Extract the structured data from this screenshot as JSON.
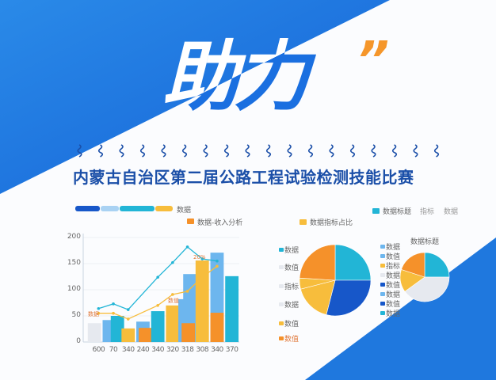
{
  "colors": {
    "primary_blue": "#1a6fe0",
    "dark_blue": "#1757c9",
    "light_blue": "#6db6ee",
    "cyan": "#22b5d6",
    "yellow": "#f7bd3c",
    "orange": "#f5912a",
    "gray": "#e6e9ef"
  },
  "poster": {
    "headline": "助力",
    "quote_mark": "”",
    "subtitle": "内蒙古自治区第二届公路工程试验检测技能比赛"
  },
  "bar_legend": {
    "label": "数据",
    "series_label": "数据-收入分析"
  },
  "pie_legend": {
    "label": "数据指标占比",
    "right_labels": [
      "数据标题",
      "指标",
      "数据"
    ]
  },
  "chart_data": [
    {
      "type": "bar",
      "categories": [
        "600",
        "70",
        "340",
        "240",
        "340",
        "320",
        "318",
        "308",
        "340",
        "370"
      ],
      "y_ticks": [
        "0",
        "50",
        "100",
        "150",
        "200"
      ],
      "ylim": [
        0,
        200
      ],
      "grid": true,
      "bars": [
        {
          "cat": 0,
          "offset": -0.5,
          "color": "gray",
          "value": 36
        },
        {
          "cat": 1,
          "offset": -0.5,
          "color": "light_blue",
          "value": 42
        },
        {
          "cat": 1,
          "offset": 0.5,
          "color": "cyan",
          "value": 50
        },
        {
          "cat": 2,
          "offset": 0,
          "color": "yellow",
          "value": 26
        },
        {
          "cat": 3,
          "offset": 0,
          "color": "light_blue",
          "value": 39
        },
        {
          "cat": 3,
          "offset": 0.3,
          "color": "orange",
          "value": 27
        },
        {
          "cat": 4,
          "offset": 0,
          "color": "cyan",
          "value": 59
        },
        {
          "cat": 5,
          "offset": 0,
          "color": "yellow",
          "value": 70
        },
        {
          "cat": 6,
          "offset": -0.3,
          "color": "light_blue",
          "value": 82
        },
        {
          "cat": 6,
          "offset": 0.3,
          "color": "light_blue",
          "value": 130
        },
        {
          "cat": 6,
          "offset": 0.1,
          "color": "orange",
          "value": 36
        },
        {
          "cat": 7,
          "offset": 0,
          "color": "yellow",
          "value": 156
        },
        {
          "cat": 8,
          "offset": 0,
          "color": "light_blue",
          "value": 171
        },
        {
          "cat": 8,
          "offset": 0,
          "color": "orange",
          "value": 56
        },
        {
          "cat": 9,
          "offset": 0,
          "color": "cyan",
          "value": 126
        }
      ],
      "lines": [
        {
          "color": "cyan",
          "points": [
            [
              0,
              64
            ],
            [
              1,
              73
            ],
            [
              2,
              62
            ],
            [
              4,
              124
            ],
            [
              5,
              152
            ],
            [
              6,
              182
            ],
            [
              7,
              159
            ],
            [
              8,
              155
            ]
          ]
        },
        {
          "color": "yellow",
          "points": [
            [
              0,
              55
            ],
            [
              1,
              55
            ],
            [
              2,
              44
            ],
            [
              4,
              70
            ],
            [
              5,
              91
            ],
            [
              6,
              97
            ],
            [
              7,
              124
            ],
            [
              8,
              145
            ]
          ]
        }
      ],
      "annotations": [
        "数据",
        "数值",
        "20%"
      ]
    },
    {
      "type": "pie",
      "slices": [
        {
          "color": "cyan",
          "value": 25
        },
        {
          "color": "dark_blue",
          "value": 29
        },
        {
          "color": "yellow",
          "value": 17
        },
        {
          "color": "yellow",
          "value": 5
        },
        {
          "color": "orange",
          "value": 24
        }
      ],
      "legend": [
        {
          "color": "cyan",
          "label": "数据"
        },
        {
          "color": "gray",
          "label": "数值"
        },
        {
          "color": "gray",
          "label": "指标"
        },
        {
          "color": "gray",
          "label": "数据"
        },
        {
          "color": "yellow",
          "label": "数值"
        },
        {
          "color": "orange",
          "label": "数值"
        }
      ]
    },
    {
      "type": "pie",
      "title": "数据标题",
      "slices": [
        {
          "color": "cyan",
          "value": 25
        },
        {
          "color": "gray",
          "value": 40
        },
        {
          "color": "yellow",
          "value": 15
        },
        {
          "color": "orange",
          "value": 20
        }
      ],
      "legend": [
        {
          "color": "light_blue",
          "label": "数据"
        },
        {
          "color": "light_blue",
          "label": "数值"
        },
        {
          "color": "yellow",
          "label": "指标"
        },
        {
          "color": "gray",
          "label": "数据"
        },
        {
          "color": "dark_blue",
          "label": "数值"
        },
        {
          "color": "light_blue",
          "label": "数据"
        },
        {
          "color": "dark_blue",
          "label": "数值"
        },
        {
          "color": "cyan",
          "label": "数据"
        }
      ]
    }
  ]
}
